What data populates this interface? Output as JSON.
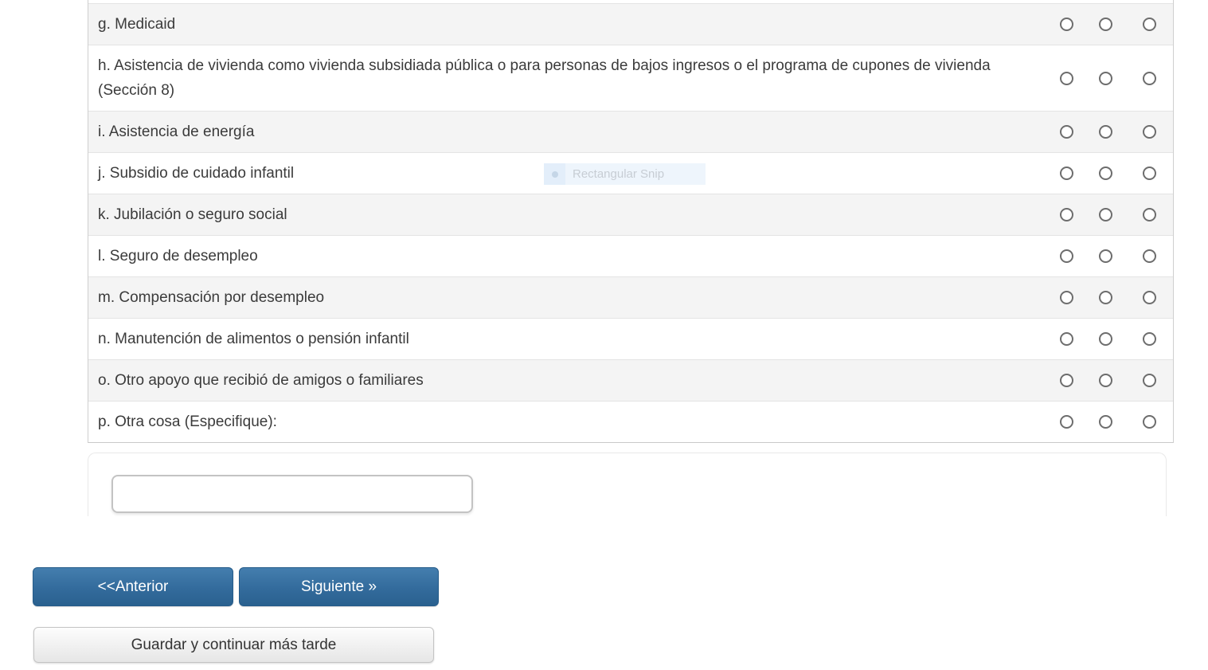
{
  "question_table": {
    "rows": [
      {
        "id": "g",
        "label": "g. Medicaid"
      },
      {
        "id": "h",
        "label": "h. Asistencia de vivienda como vivienda subsidiada pública o para personas de bajos ingresos o el programa de cupones de vivienda (Sección 8)"
      },
      {
        "id": "i",
        "label": "i. Asistencia de energía"
      },
      {
        "id": "j",
        "label": "j. Subsidio de cuidado infantil"
      },
      {
        "id": "k",
        "label": "k. Jubilación o seguro social"
      },
      {
        "id": "l",
        "label": "l. Seguro de desempleo"
      },
      {
        "id": "m",
        "label": "m. Compensación por desempleo"
      },
      {
        "id": "n",
        "label": "n. Manutención de alimentos o pensión infantil"
      },
      {
        "id": "o",
        "label": "o. Otro apoyo que recibió de amigos o familiares"
      },
      {
        "id": "p",
        "label": "p. Otra cosa (Especifique):"
      }
    ],
    "options_per_row": 3,
    "radio_selected": []
  },
  "snip_overlay": {
    "label": "Rectangular Snip"
  },
  "other_input": {
    "value": "",
    "placeholder": ""
  },
  "nav": {
    "previous_label": "<<Anterior",
    "next_label": "Siguiente »",
    "save_label": "Guardar y continuar más tarde"
  },
  "colors": {
    "primary_button": "#336b9c",
    "row_alternate": "#f4f4f4",
    "radio_border": "#6d6d6d",
    "snip_background": "#eef5fc"
  }
}
